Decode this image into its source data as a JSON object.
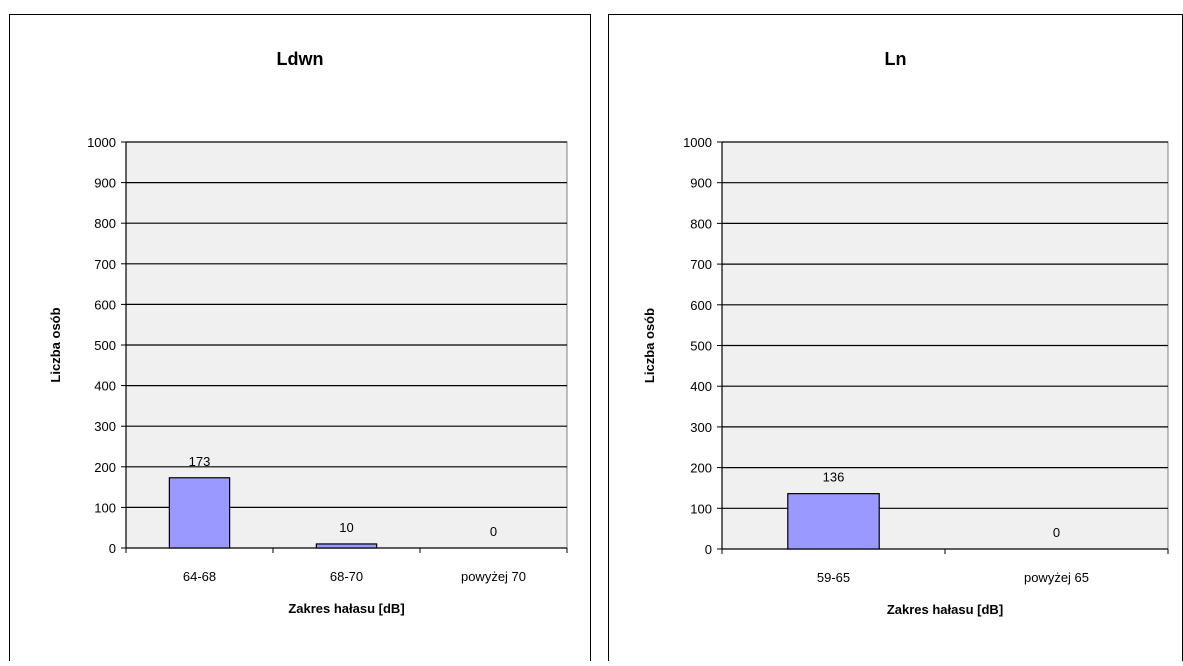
{
  "chart_data": [
    {
      "type": "bar",
      "title": "Ldwn",
      "xlabel": "Zakres hałasu [dB]",
      "ylabel": "Liczba osób",
      "categories": [
        "64-68",
        "68-70",
        "powyżej 70"
      ],
      "values": [
        173,
        10,
        0
      ],
      "data_labels": [
        "173",
        "10",
        "0"
      ],
      "ylim": [
        0,
        1000
      ],
      "yticks": [
        0,
        100,
        200,
        300,
        400,
        500,
        600,
        700,
        800,
        900,
        1000
      ],
      "grid": true,
      "legend": "none",
      "colors": {
        "bar": "#9999ff",
        "plot_bg": "#f0f0f0",
        "grid": "#000000"
      }
    },
    {
      "type": "bar",
      "title": "Ln",
      "xlabel": "Zakres hałasu [dB]",
      "ylabel": "Liczba osób",
      "categories": [
        "59-65",
        "powyżej 65"
      ],
      "values": [
        136,
        0
      ],
      "data_labels": [
        "136",
        "0"
      ],
      "ylim": [
        0,
        1000
      ],
      "yticks": [
        0,
        100,
        200,
        300,
        400,
        500,
        600,
        700,
        800,
        900,
        1000
      ],
      "grid": true,
      "legend": "none",
      "colors": {
        "bar": "#9999ff",
        "plot_bg": "#f0f0f0",
        "grid": "#000000"
      }
    }
  ]
}
